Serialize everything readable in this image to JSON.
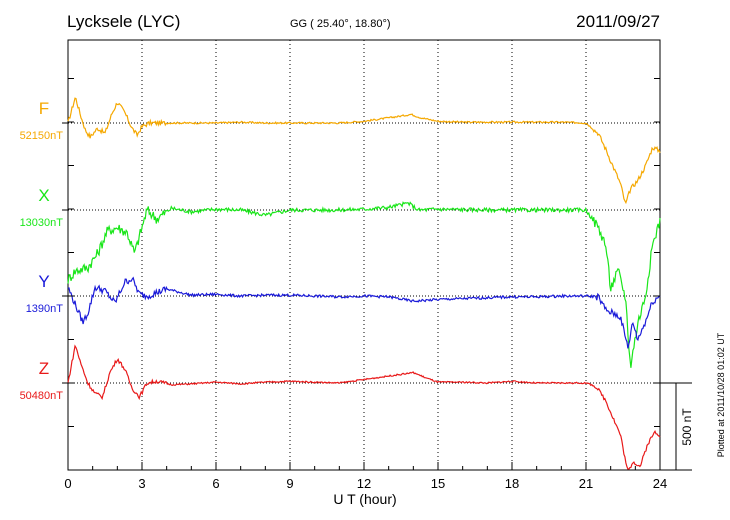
{
  "header": {
    "station": "Lycksele (LYC)",
    "coords": "GG ( 25.40°,  18.80°)",
    "date": "2011/09/27"
  },
  "footer": {
    "plotted": "Plotted at 2011/10/28 01:02 UT"
  },
  "chart_data": {
    "type": "line",
    "xlabel": "U T (hour)",
    "xlim": [
      0,
      24
    ],
    "xticks": [
      "0",
      "3",
      "6",
      "9",
      "12",
      "15",
      "18",
      "21",
      "24"
    ],
    "grid": "dotted vertical every 3 hours; dotted baseline per component",
    "scale_bar": {
      "label": "500 nT",
      "value_nT": 500
    },
    "series": [
      {
        "name": "F",
        "baseline_label": "52150nT",
        "baseline_nT": 52150,
        "color": "#f5a800",
        "offset_nT": [
          [
            0,
            0
          ],
          [
            0.3,
            150
          ],
          [
            0.5,
            50
          ],
          [
            0.7,
            -40
          ],
          [
            0.9,
            -80
          ],
          [
            1.2,
            -30
          ],
          [
            1.5,
            -60
          ],
          [
            1.8,
            60
          ],
          [
            2.0,
            120
          ],
          [
            2.3,
            60
          ],
          [
            2.6,
            -30
          ],
          [
            2.8,
            -70
          ],
          [
            3.0,
            -20
          ],
          [
            3.3,
            0
          ],
          [
            4,
            0
          ],
          [
            5,
            0
          ],
          [
            6,
            0
          ],
          [
            7,
            5
          ],
          [
            8,
            0
          ],
          [
            9,
            0
          ],
          [
            10,
            0
          ],
          [
            11,
            0
          ],
          [
            12,
            10
          ],
          [
            13,
            30
          ],
          [
            13.5,
            40
          ],
          [
            13.9,
            50
          ],
          [
            14.3,
            30
          ],
          [
            15,
            10
          ],
          [
            16,
            5
          ],
          [
            18,
            5
          ],
          [
            20,
            5
          ],
          [
            21,
            0
          ],
          [
            21.5,
            -60
          ],
          [
            21.8,
            -150
          ],
          [
            22.1,
            -250
          ],
          [
            22.4,
            -350
          ],
          [
            22.6,
            -470
          ],
          [
            22.8,
            -380
          ],
          [
            23.1,
            -330
          ],
          [
            23.4,
            -250
          ],
          [
            23.7,
            -140
          ],
          [
            24,
            -160
          ]
        ]
      },
      {
        "name": "X",
        "baseline_label": "13030nT",
        "baseline_nT": 13030,
        "color": "#19e619",
        "offset_nT": [
          [
            0,
            -400
          ],
          [
            0.3,
            -350
          ],
          [
            0.8,
            -330
          ],
          [
            1.2,
            -250
          ],
          [
            1.6,
            -120
          ],
          [
            2.0,
            -100
          ],
          [
            2.4,
            -130
          ],
          [
            2.7,
            -250
          ],
          [
            2.9,
            -150
          ],
          [
            3.2,
            0
          ],
          [
            3.6,
            -50
          ],
          [
            4.2,
            10
          ],
          [
            5,
            -10
          ],
          [
            6,
            5
          ],
          [
            7,
            0
          ],
          [
            8,
            -30
          ],
          [
            9,
            0
          ],
          [
            10,
            0
          ],
          [
            11,
            0
          ],
          [
            12,
            5
          ],
          [
            13,
            15
          ],
          [
            13.8,
            40
          ],
          [
            14.2,
            0
          ],
          [
            15,
            5
          ],
          [
            17,
            0
          ],
          [
            19,
            0
          ],
          [
            21,
            0
          ],
          [
            21.5,
            -100
          ],
          [
            21.8,
            -200
          ],
          [
            22.0,
            -450
          ],
          [
            22.3,
            -350
          ],
          [
            22.6,
            -500
          ],
          [
            22.8,
            -900
          ],
          [
            23.1,
            -650
          ],
          [
            23.4,
            -500
          ],
          [
            23.7,
            -200
          ],
          [
            24,
            -60
          ]
        ]
      },
      {
        "name": "Y",
        "baseline_label": "1390nT",
        "baseline_nT": 1390,
        "color": "#1a1ad9",
        "offset_nT": [
          [
            0,
            50
          ],
          [
            0.3,
            -50
          ],
          [
            0.6,
            -150
          ],
          [
            0.8,
            -100
          ],
          [
            1.1,
            50
          ],
          [
            1.5,
            30
          ],
          [
            1.9,
            -40
          ],
          [
            2.3,
            80
          ],
          [
            2.6,
            100
          ],
          [
            2.9,
            10
          ],
          [
            3.2,
            0
          ],
          [
            4,
            40
          ],
          [
            5,
            5
          ],
          [
            6,
            10
          ],
          [
            7,
            0
          ],
          [
            8,
            5
          ],
          [
            9,
            5
          ],
          [
            10,
            0
          ],
          [
            11,
            -5
          ],
          [
            12,
            0
          ],
          [
            13,
            -5
          ],
          [
            14,
            -30
          ],
          [
            15,
            -20
          ],
          [
            16,
            -15
          ],
          [
            17,
            -10
          ],
          [
            18,
            -5
          ],
          [
            19,
            -5
          ],
          [
            20,
            0
          ],
          [
            21,
            0
          ],
          [
            21.5,
            -5
          ],
          [
            21.8,
            -80
          ],
          [
            22.1,
            -100
          ],
          [
            22.4,
            -120
          ],
          [
            22.7,
            -300
          ],
          [
            22.9,
            -150
          ],
          [
            23.1,
            -250
          ],
          [
            23.4,
            -150
          ],
          [
            23.7,
            -30
          ],
          [
            24,
            0
          ]
        ]
      },
      {
        "name": "Z",
        "baseline_label": "50480nT",
        "baseline_nT": 50480,
        "color": "#e81919",
        "offset_nT": [
          [
            0,
            0
          ],
          [
            0.3,
            220
          ],
          [
            0.5,
            120
          ],
          [
            0.8,
            0
          ],
          [
            1.1,
            -60
          ],
          [
            1.4,
            -80
          ],
          [
            1.7,
            60
          ],
          [
            2.0,
            140
          ],
          [
            2.3,
            80
          ],
          [
            2.6,
            -30
          ],
          [
            2.9,
            -80
          ],
          [
            3.2,
            0
          ],
          [
            3.6,
            10
          ],
          [
            4.2,
            -10
          ],
          [
            5,
            -5
          ],
          [
            6,
            5
          ],
          [
            7,
            -5
          ],
          [
            8,
            5
          ],
          [
            9,
            10
          ],
          [
            10,
            5
          ],
          [
            11,
            0
          ],
          [
            12,
            20
          ],
          [
            13,
            40
          ],
          [
            14,
            60
          ],
          [
            14.5,
            30
          ],
          [
            15,
            5
          ],
          [
            16,
            5
          ],
          [
            17,
            0
          ],
          [
            18,
            10
          ],
          [
            19,
            0
          ],
          [
            20,
            0
          ],
          [
            21,
            0
          ],
          [
            21.4,
            -20
          ],
          [
            21.8,
            -100
          ],
          [
            22.1,
            -200
          ],
          [
            22.4,
            -300
          ],
          [
            22.7,
            -520
          ],
          [
            22.9,
            -450
          ],
          [
            23.2,
            -480
          ],
          [
            23.5,
            -350
          ],
          [
            23.8,
            -280
          ],
          [
            24,
            -300
          ]
        ]
      }
    ]
  }
}
